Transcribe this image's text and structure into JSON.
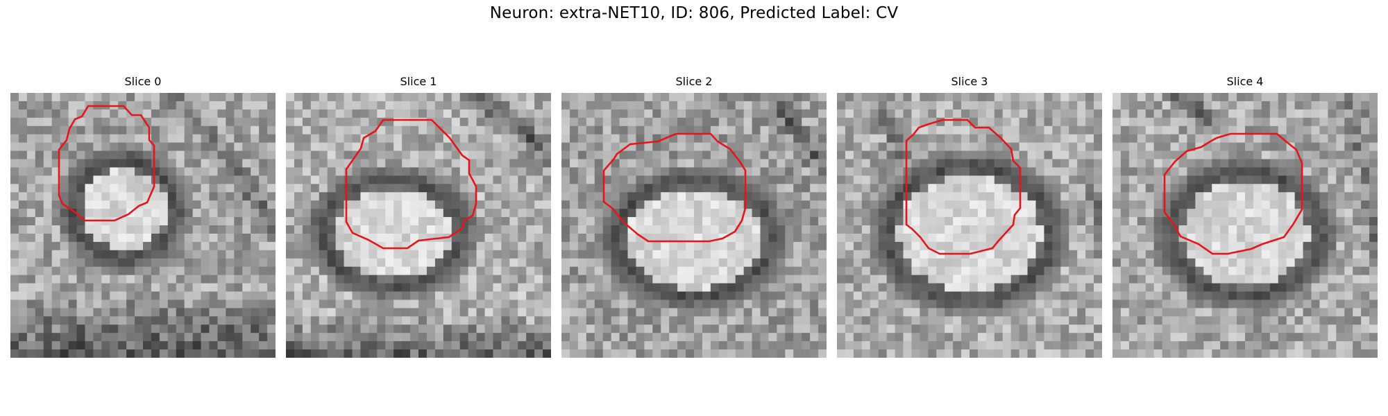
{
  "figure": {
    "title": "Neuron: extra-NET10, ID: 806, Predicted Label: CV"
  },
  "contour_color": "#e8141a",
  "panels": [
    {
      "title": "Slice 0",
      "image": "grayscale-microscopy-slice"
    },
    {
      "title": "Slice 1",
      "image": "grayscale-microscopy-slice"
    },
    {
      "title": "Slice 2",
      "image": "grayscale-microscopy-slice"
    },
    {
      "title": "Slice 3",
      "image": "grayscale-microscopy-slice"
    },
    {
      "title": "Slice 4",
      "image": "grayscale-microscopy-slice"
    }
  ]
}
